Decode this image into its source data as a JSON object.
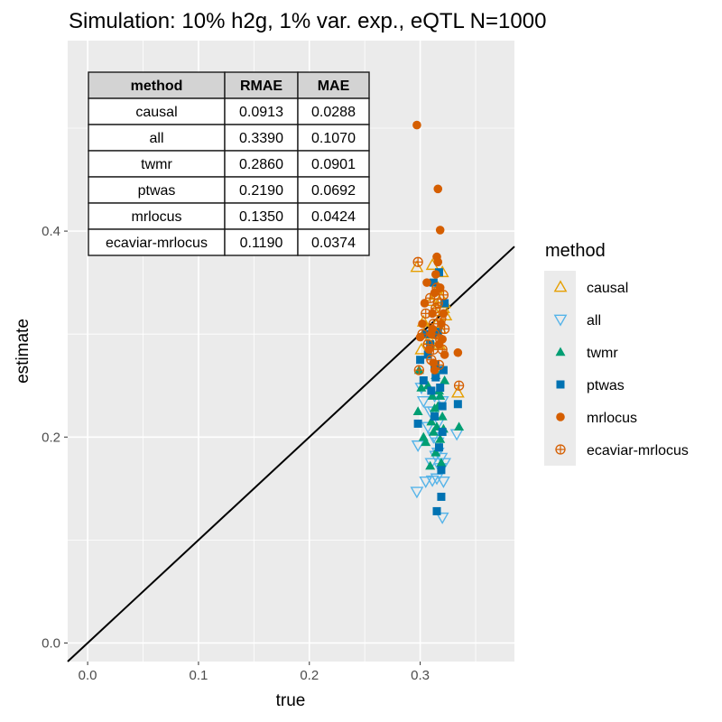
{
  "chart_data": {
    "type": "scatter",
    "title": "Simulation: 10% h2g, 1% var. exp., eQTL N=1000",
    "xlabel": "true",
    "ylabel": "estimate",
    "xlim": [
      -0.018,
      0.385
    ],
    "ylim": [
      -0.018,
      0.585
    ],
    "x_ticks": [
      0.0,
      0.1,
      0.2,
      0.3
    ],
    "x_tick_labels": [
      "0.0",
      "0.1",
      "0.2",
      "0.3"
    ],
    "y_ticks": [
      0.0,
      0.2,
      0.4
    ],
    "y_tick_labels": [
      "0.0",
      "0.2",
      "0.4"
    ],
    "grid": true,
    "reference_line": {
      "slope": 1,
      "intercept": 0,
      "color": "#000000"
    },
    "legend": {
      "title": "method",
      "position": "right"
    },
    "series": [
      {
        "name": "causal",
        "color": "#E69F00",
        "shape": "triangle-open",
        "points": [
          [
            0.297,
            0.365
          ],
          [
            0.301,
            0.285
          ],
          [
            0.303,
            0.312
          ],
          [
            0.306,
            0.305
          ],
          [
            0.308,
            0.295
          ],
          [
            0.31,
            0.332
          ],
          [
            0.311,
            0.367
          ],
          [
            0.312,
            0.3
          ],
          [
            0.313,
            0.322
          ],
          [
            0.314,
            0.338
          ],
          [
            0.315,
            0.31
          ],
          [
            0.316,
            0.345
          ],
          [
            0.317,
            0.29
          ],
          [
            0.318,
            0.305
          ],
          [
            0.319,
            0.335
          ],
          [
            0.32,
            0.36
          ],
          [
            0.321,
            0.325
          ],
          [
            0.322,
            0.33
          ],
          [
            0.323,
            0.318
          ],
          [
            0.334,
            0.243
          ]
        ]
      },
      {
        "name": "all",
        "color": "#56B4E9",
        "shape": "triangle-down-open",
        "points": [
          [
            0.297,
            0.147
          ],
          [
            0.298,
            0.192
          ],
          [
            0.301,
            0.248
          ],
          [
            0.303,
            0.235
          ],
          [
            0.305,
            0.157
          ],
          [
            0.307,
            0.21
          ],
          [
            0.309,
            0.225
          ],
          [
            0.31,
            0.175
          ],
          [
            0.311,
            0.158
          ],
          [
            0.312,
            0.2
          ],
          [
            0.313,
            0.24
          ],
          [
            0.314,
            0.182
          ],
          [
            0.315,
            0.16
          ],
          [
            0.316,
            0.195
          ],
          [
            0.317,
            0.215
          ],
          [
            0.318,
            0.17
          ],
          [
            0.319,
            0.18
          ],
          [
            0.32,
            0.122
          ],
          [
            0.321,
            0.157
          ],
          [
            0.322,
            0.175
          ],
          [
            0.32,
            0.235
          ],
          [
            0.333,
            0.203
          ],
          [
            0.312,
            0.225
          ],
          [
            0.316,
            0.185
          ]
        ]
      },
      {
        "name": "twmr",
        "color": "#009E73",
        "shape": "triangle-filled",
        "points": [
          [
            0.298,
            0.225
          ],
          [
            0.299,
            0.265
          ],
          [
            0.301,
            0.248
          ],
          [
            0.303,
            0.2
          ],
          [
            0.305,
            0.195
          ],
          [
            0.307,
            0.25
          ],
          [
            0.309,
            0.172
          ],
          [
            0.31,
            0.215
          ],
          [
            0.311,
            0.24
          ],
          [
            0.312,
            0.205
          ],
          [
            0.313,
            0.228
          ],
          [
            0.314,
            0.185
          ],
          [
            0.315,
            0.21
          ],
          [
            0.316,
            0.23
          ],
          [
            0.317,
            0.245
          ],
          [
            0.318,
            0.198
          ],
          [
            0.319,
            0.175
          ],
          [
            0.32,
            0.22
          ],
          [
            0.321,
            0.208
          ],
          [
            0.322,
            0.255
          ],
          [
            0.32,
            0.265
          ],
          [
            0.335,
            0.21
          ],
          [
            0.314,
            0.26
          ],
          [
            0.318,
            0.24
          ]
        ]
      },
      {
        "name": "ptwas",
        "color": "#0072B2",
        "shape": "square-filled",
        "points": [
          [
            0.298,
            0.213
          ],
          [
            0.3,
            0.275
          ],
          [
            0.303,
            0.255
          ],
          [
            0.305,
            0.3
          ],
          [
            0.307,
            0.28
          ],
          [
            0.309,
            0.29
          ],
          [
            0.31,
            0.245
          ],
          [
            0.311,
            0.3
          ],
          [
            0.312,
            0.35
          ],
          [
            0.313,
            0.27
          ],
          [
            0.314,
            0.258
          ],
          [
            0.315,
            0.128
          ],
          [
            0.316,
            0.302
          ],
          [
            0.317,
            0.36
          ],
          [
            0.318,
            0.248
          ],
          [
            0.319,
            0.142
          ],
          [
            0.32,
            0.23
          ],
          [
            0.321,
            0.265
          ],
          [
            0.322,
            0.33
          ],
          [
            0.32,
            0.205
          ],
          [
            0.334,
            0.232
          ],
          [
            0.313,
            0.22
          ],
          [
            0.317,
            0.19
          ],
          [
            0.319,
            0.168
          ]
        ]
      },
      {
        "name": "mrlocus",
        "color": "#D55E00",
        "shape": "circle-filled",
        "points": [
          [
            0.297,
            0.503
          ],
          [
            0.3,
            0.297
          ],
          [
            0.302,
            0.31
          ],
          [
            0.304,
            0.33
          ],
          [
            0.306,
            0.35
          ],
          [
            0.308,
            0.285
          ],
          [
            0.31,
            0.3
          ],
          [
            0.311,
            0.32
          ],
          [
            0.312,
            0.272
          ],
          [
            0.313,
            0.34
          ],
          [
            0.314,
            0.358
          ],
          [
            0.315,
            0.375
          ],
          [
            0.316,
            0.441
          ],
          [
            0.317,
            0.29
          ],
          [
            0.318,
            0.401
          ],
          [
            0.319,
            0.31
          ],
          [
            0.32,
            0.295
          ],
          [
            0.321,
            0.32
          ],
          [
            0.322,
            0.28
          ],
          [
            0.316,
            0.37
          ],
          [
            0.334,
            0.282
          ],
          [
            0.313,
            0.265
          ],
          [
            0.318,
            0.345
          ],
          [
            0.311,
            0.305
          ]
        ]
      },
      {
        "name": "ecaviar-mrlocus",
        "color": "#D55E00",
        "shape": "circle-plus",
        "points": [
          [
            0.298,
            0.37
          ],
          [
            0.299,
            0.265
          ],
          [
            0.302,
            0.3
          ],
          [
            0.305,
            0.32
          ],
          [
            0.307,
            0.29
          ],
          [
            0.309,
            0.335
          ],
          [
            0.31,
            0.275
          ],
          [
            0.312,
            0.31
          ],
          [
            0.313,
            0.3
          ],
          [
            0.314,
            0.325
          ],
          [
            0.315,
            0.345
          ],
          [
            0.316,
            0.33
          ],
          [
            0.317,
            0.27
          ],
          [
            0.318,
            0.295
          ],
          [
            0.319,
            0.315
          ],
          [
            0.32,
            0.285
          ],
          [
            0.321,
            0.338
          ],
          [
            0.322,
            0.305
          ],
          [
            0.335,
            0.25
          ],
          [
            0.312,
            0.285
          ]
        ]
      }
    ],
    "table": {
      "columns": [
        "method",
        "RMAE",
        "MAE"
      ],
      "rows": [
        [
          "causal",
          "0.0913",
          "0.0288"
        ],
        [
          "all",
          "0.3390",
          "0.1070"
        ],
        [
          "twmr",
          "0.2860",
          "0.0901"
        ],
        [
          "ptwas",
          "0.2190",
          "0.0692"
        ],
        [
          "mrlocus",
          "0.1350",
          "0.0424"
        ],
        [
          "ecaviar-mrlocus",
          "0.1190",
          "0.0374"
        ]
      ]
    }
  }
}
